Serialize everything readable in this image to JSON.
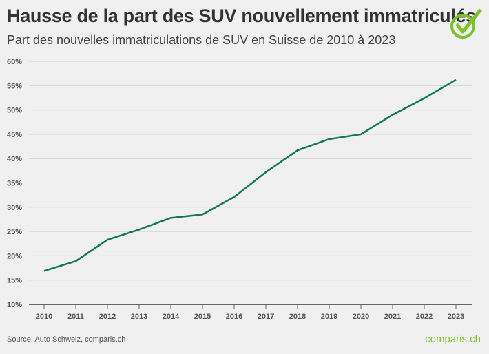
{
  "title": "Hausse de la part des SUV nouvellement immatriculés",
  "subtitle": "Part des nouvelles immatriculations de SUV en Suisse de 2010 à 2023",
  "source": "Source: Auto Schweiz, comparis.ch",
  "brand": "comparis.ch",
  "colors": {
    "line": "#127a4e",
    "brand": "#7cc22b",
    "grid": "#cfcfcf"
  },
  "chart_data": {
    "type": "line",
    "title": "Hausse de la part des SUV nouvellement immatriculés",
    "subtitle": "Part des nouvelles immatriculations de SUV en Suisse de 2010 à 2023",
    "x": [
      "2010",
      "2011",
      "2012",
      "2013",
      "2014",
      "2015",
      "2016",
      "2017",
      "2018",
      "2019",
      "2020",
      "2021",
      "2022",
      "2023"
    ],
    "series": [
      {
        "values": [
          16.9,
          18.9,
          23.3,
          25.4,
          27.8,
          28.5,
          32.1,
          37.2,
          41.7,
          44.0,
          45.0,
          49.0,
          52.4,
          56.2
        ]
      }
    ],
    "ylim": [
      10,
      60
    ],
    "yticks": [
      "10%",
      "15%",
      "20%",
      "25%",
      "30%",
      "35%",
      "40%",
      "45%",
      "50%",
      "55%",
      "60%"
    ],
    "grid": "horizontal",
    "legend": "none"
  }
}
